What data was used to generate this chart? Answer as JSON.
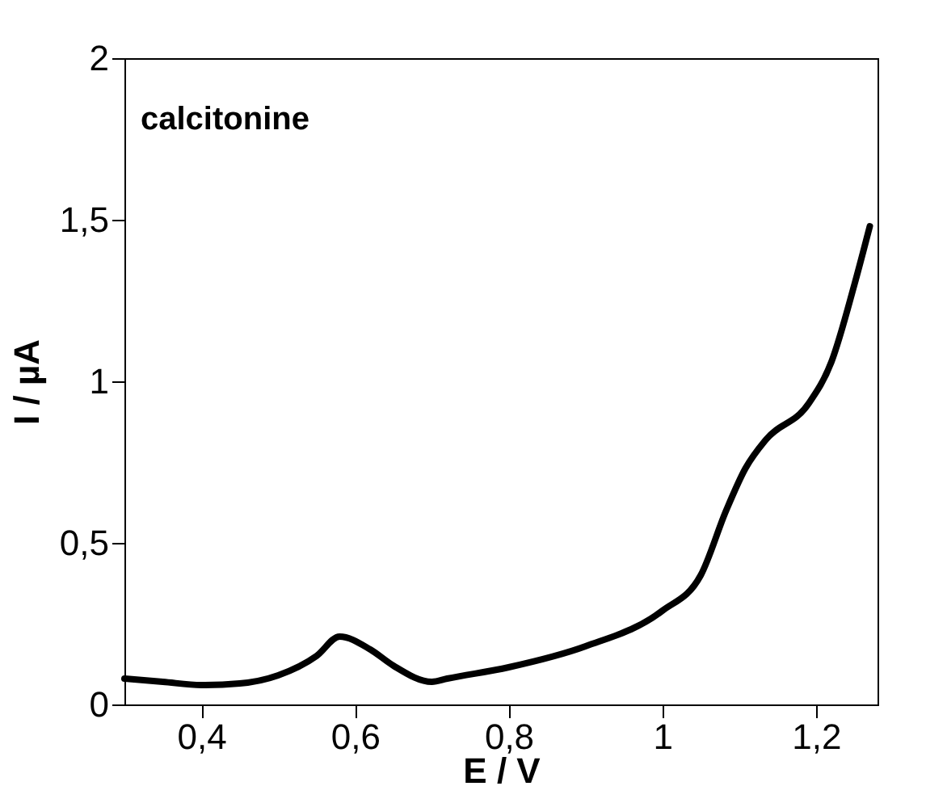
{
  "chart_data": {
    "type": "line",
    "xlabel": "E / V",
    "ylabel": "I / µA",
    "annotations": [
      "calcitonine"
    ],
    "x": [
      0.3,
      0.35,
      0.4,
      0.45,
      0.5,
      0.55,
      0.58,
      0.62,
      0.65,
      0.7,
      0.72,
      0.8,
      0.9,
      1.0,
      1.05,
      1.083,
      1.108,
      1.135,
      1.19,
      1.22,
      1.25,
      1.27
    ],
    "series": [
      {
        "color": "#000000",
        "values": [
          0.08,
          0.07,
          0.06,
          0.065,
          0.09,
          0.15,
          0.21,
          0.17,
          0.12,
          0.07,
          0.08,
          0.115,
          0.18,
          0.29,
          0.4,
          0.6,
          0.73,
          0.82,
          0.93,
          1.06,
          1.3,
          1.48
        ]
      }
    ],
    "xlim": [
      0.3,
      1.28
    ],
    "ylim": [
      0,
      2
    ],
    "xticks": [
      {
        "value": 0.4,
        "label": "0,4"
      },
      {
        "value": 0.6,
        "label": "0,6"
      },
      {
        "value": 0.8,
        "label": "0,8"
      },
      1,
      {
        "value": 1.2,
        "label": "1,2"
      }
    ],
    "yticks": [
      0,
      {
        "value": 0.5,
        "label": "0,5"
      },
      1,
      {
        "value": 1.5,
        "label": "1,5"
      },
      2
    ],
    "grid": false,
    "marker": "none",
    "line_style": "solid"
  }
}
